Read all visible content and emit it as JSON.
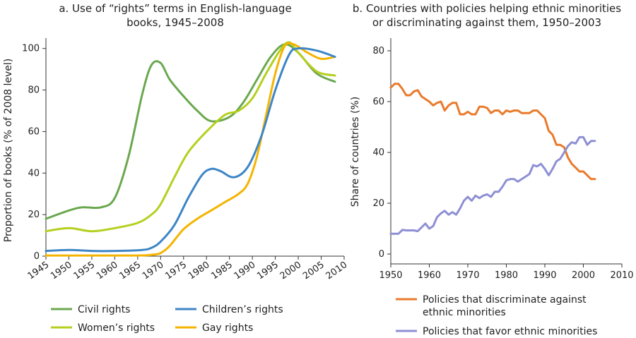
{
  "chart_data": [
    {
      "type": "line",
      "title": [
        "a. Use of “rights” terms in English-language",
        "books, 1945–2008"
      ],
      "xlabel": "",
      "ylabel": "Proportion of books (% of 2008 level)",
      "xlim": [
        1945,
        2010
      ],
      "ylim": [
        0,
        105
      ],
      "xticks": [
        1945,
        1950,
        1955,
        1960,
        1965,
        1970,
        1975,
        1980,
        1985,
        1990,
        1995,
        2000,
        2005,
        2010
      ],
      "yticks": [
        0,
        20,
        40,
        60,
        80,
        100
      ],
      "grid": false,
      "legend_position": "bottom",
      "series": [
        {
          "name": "Civil rights",
          "color": "#6aa84f",
          "x": [
            1945,
            1950,
            1953,
            1957,
            1960,
            1963,
            1966,
            1968,
            1970,
            1972,
            1975,
            1978,
            1981,
            1985,
            1988,
            1991,
            1994,
            1997,
            2000,
            2004,
            2008
          ],
          "y": [
            18,
            22,
            23.5,
            23.5,
            28,
            48,
            78,
            92,
            93,
            85,
            77,
            70,
            65,
            67,
            74,
            85,
            96,
            102,
            98,
            88,
            84
          ]
        },
        {
          "name": "Children’s rights",
          "color": "#3d85c6",
          "x": [
            1945,
            1950,
            1955,
            1960,
            1966,
            1968,
            1970,
            1973,
            1976,
            1979,
            1981,
            1983,
            1986,
            1989,
            1992,
            1995,
            1998,
            2000,
            2004,
            2008
          ],
          "y": [
            2.5,
            3,
            2.5,
            2.5,
            3,
            4,
            7,
            15,
            28,
            39,
            42,
            41,
            38,
            43,
            58,
            80,
            97,
            100,
            99,
            96
          ]
        },
        {
          "name": "Women’s rights",
          "color": "#b5cf1f",
          "x": [
            1945,
            1950,
            1955,
            1960,
            1965,
            1968,
            1970,
            1973,
            1976,
            1980,
            1984,
            1987,
            1990,
            1993,
            1996,
            1998,
            2000,
            2004,
            2008
          ],
          "y": [
            12,
            13.5,
            12,
            13.5,
            16,
            20,
            25,
            38,
            50,
            60,
            68,
            70,
            76,
            88,
            99,
            103,
            98,
            89,
            87
          ]
        },
        {
          "name": "Gay rights",
          "color": "#f4b400",
          "x": [
            1945,
            1955,
            1965,
            1968,
            1970,
            1972,
            1975,
            1978,
            1981,
            1984,
            1987,
            1989,
            1991,
            1993,
            1995,
            1997,
            1999,
            2002,
            2005,
            2008
          ],
          "y": [
            0.3,
            0.3,
            0.3,
            0.6,
            1.5,
            5,
            13,
            18,
            22,
            26,
            30,
            35,
            48,
            68,
            88,
            101,
            102,
            98,
            95,
            96
          ]
        }
      ]
    },
    {
      "type": "line",
      "title": [
        "b. Countries with policies helping ethnic minorities",
        "or discriminating against them, 1950–2003"
      ],
      "xlabel": "",
      "ylabel": "Share of countries (%)",
      "xlim": [
        1950,
        2010
      ],
      "ylim": [
        0,
        80
      ],
      "xticks": [
        1950,
        1960,
        1970,
        1980,
        1990,
        2000,
        2010
      ],
      "yticks": [
        0,
        20,
        40,
        60,
        80
      ],
      "grid": false,
      "legend_position": "bottom",
      "series": [
        {
          "name": "Policies that discriminate against ethnic minorities",
          "legend_lines": [
            "Policies that discriminate against",
            "ethnic minorities"
          ],
          "color": "#e97a2c",
          "x": [
            1950,
            1951,
            1952,
            1953,
            1954,
            1955,
            1956,
            1957,
            1958,
            1959,
            1960,
            1961,
            1962,
            1963,
            1964,
            1965,
            1966,
            1967,
            1968,
            1969,
            1970,
            1971,
            1972,
            1973,
            1974,
            1975,
            1976,
            1977,
            1978,
            1979,
            1980,
            1981,
            1982,
            1983,
            1984,
            1985,
            1986,
            1987,
            1988,
            1989,
            1990,
            1991,
            1992,
            1993,
            1994,
            1995,
            1996,
            1997,
            1998,
            1999,
            2000,
            2001,
            2002,
            2003
          ],
          "y": [
            65.5,
            67,
            67,
            65,
            62.5,
            62.5,
            64,
            64.5,
            62,
            61,
            60,
            58.5,
            59.5,
            60,
            56.5,
            58.5,
            59.5,
            59.5,
            55,
            55,
            56,
            55,
            55,
            58,
            58,
            57.5,
            55.5,
            56.5,
            56.5,
            55,
            56.5,
            56,
            56.5,
            56.5,
            55.5,
            55.5,
            55.5,
            56.5,
            56.5,
            55,
            53.5,
            48.5,
            47,
            43,
            43,
            42,
            38,
            35.5,
            34,
            32.5,
            32.5,
            31,
            29.5,
            29.5
          ]
        },
        {
          "name": "Policies that favor ethnic minorities",
          "legend_lines": [
            "Policies that favor ethnic minorities"
          ],
          "color": "#8e8fd4",
          "x": [
            1950,
            1951,
            1952,
            1953,
            1954,
            1955,
            1956,
            1957,
            1958,
            1959,
            1960,
            1961,
            1962,
            1963,
            1964,
            1965,
            1966,
            1967,
            1968,
            1969,
            1970,
            1971,
            1972,
            1973,
            1974,
            1975,
            1976,
            1977,
            1978,
            1979,
            1980,
            1981,
            1982,
            1983,
            1984,
            1985,
            1986,
            1987,
            1988,
            1989,
            1990,
            1991,
            1992,
            1993,
            1994,
            1995,
            1996,
            1997,
            1998,
            1999,
            2000,
            2001,
            2002,
            2003
          ],
          "y": [
            8,
            8,
            8,
            9.5,
            9.3,
            9.3,
            9.3,
            9,
            10.5,
            12,
            10,
            11,
            14.5,
            16,
            17,
            15.5,
            16.5,
            15.5,
            18,
            21,
            22.5,
            21,
            23,
            22,
            23,
            23.5,
            22.5,
            24.5,
            24.5,
            26.5,
            29,
            29.5,
            29.5,
            28.5,
            29.5,
            30.5,
            31.5,
            35,
            34.5,
            35.5,
            33.5,
            31,
            33.5,
            36.5,
            37.5,
            40,
            42.5,
            44,
            43.5,
            46,
            46,
            43,
            44.5,
            44.5
          ]
        }
      ]
    }
  ]
}
